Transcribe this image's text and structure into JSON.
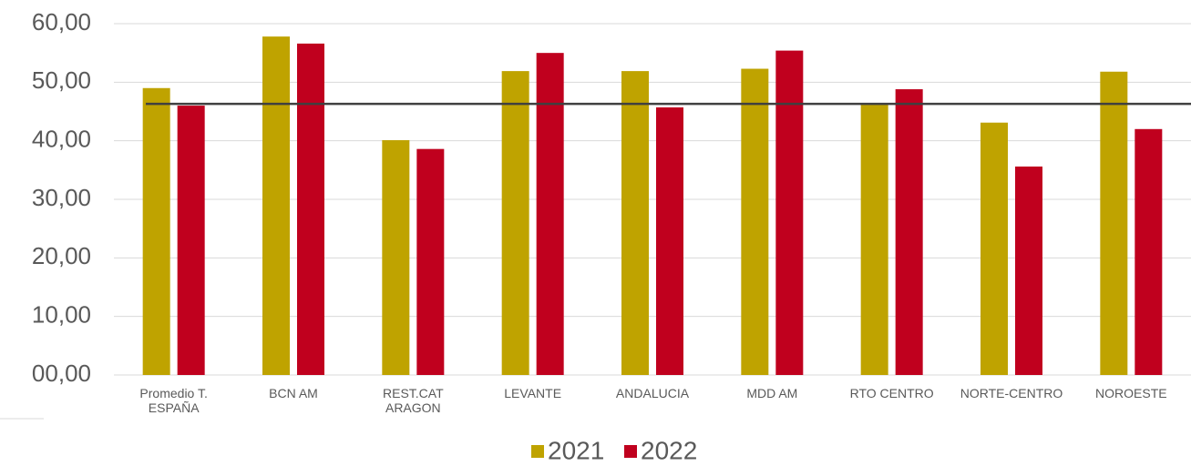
{
  "chart_data": {
    "type": "bar",
    "categories": [
      "Promedio T.\nESPAÑA",
      "BCN AM",
      "REST.CAT\nARAGON",
      "LEVANTE",
      "ANDALUCIA",
      "MDD AM",
      "RTO CENTRO",
      "NORTE-CENTRO",
      "NOROESTE"
    ],
    "series": [
      {
        "name": "2021",
        "color": "#bfa300",
        "values": [
          49.0,
          57.8,
          40.1,
          51.9,
          51.9,
          52.3,
          46.3,
          43.1,
          51.8
        ]
      },
      {
        "name": "2022",
        "color": "#c0001e",
        "values": [
          46.0,
          56.6,
          38.6,
          55.0,
          45.7,
          55.4,
          48.8,
          35.6,
          42.0
        ]
      }
    ],
    "reference_line": 46.3,
    "ylim": [
      0,
      60
    ],
    "yticks": [
      {
        "value": 0,
        "label": "00,00"
      },
      {
        "value": 10,
        "label": "10,00"
      },
      {
        "value": 20,
        "label": "20,00"
      },
      {
        "value": 30,
        "label": "30,00"
      },
      {
        "value": 40,
        "label": "40,00"
      },
      {
        "value": 50,
        "label": "50,00"
      },
      {
        "value": 60,
        "label": "60,00"
      }
    ],
    "grid": true,
    "legend": "bottom"
  }
}
